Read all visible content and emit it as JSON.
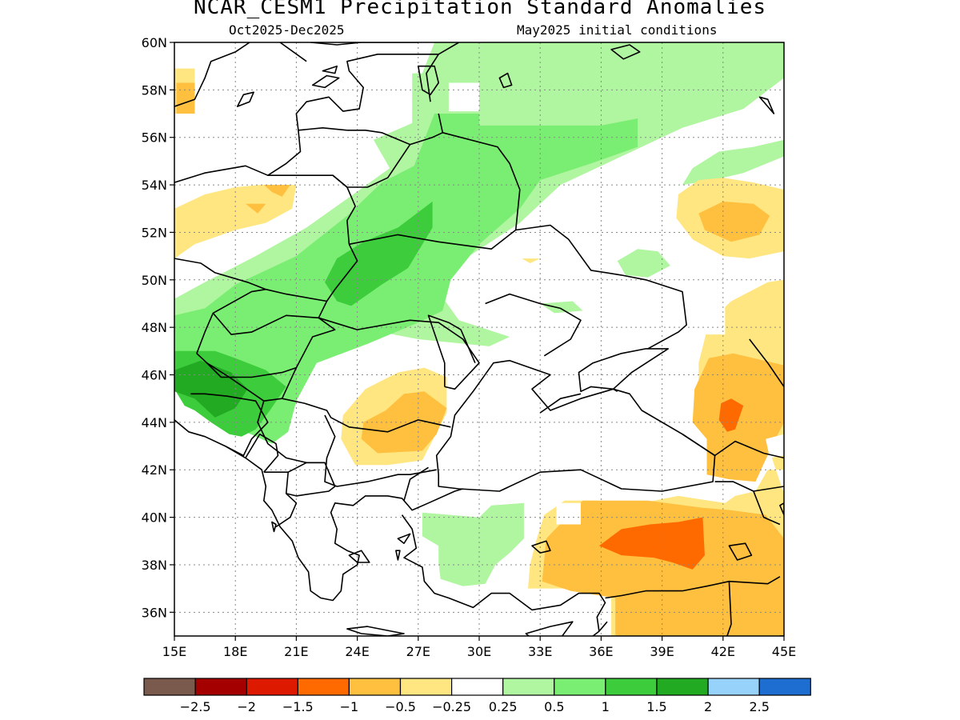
{
  "title": "NCAR_CESM1 Precipitation Standard Anomalies",
  "period": "Oct2025-Dec2025",
  "initial_conditions": "May2025 initial conditions",
  "map": {
    "lon_range": [
      15,
      45
    ],
    "lat_range": [
      35,
      60
    ],
    "lat_ticks": [
      "60N",
      "58N",
      "56N",
      "54N",
      "52N",
      "50N",
      "48N",
      "46N",
      "44N",
      "42N",
      "40N",
      "38N",
      "36N"
    ],
    "lat_tick_values": [
      60,
      58,
      56,
      54,
      52,
      50,
      48,
      46,
      44,
      42,
      40,
      38,
      36
    ],
    "lon_ticks": [
      "15E",
      "18E",
      "21E",
      "24E",
      "27E",
      "30E",
      "33E",
      "36E",
      "39E",
      "42E",
      "45E"
    ],
    "lon_tick_values": [
      15,
      18,
      21,
      24,
      27,
      30,
      33,
      36,
      39,
      42,
      45
    ],
    "grid": true
  },
  "colorbar": {
    "colors": [
      "#7b5a4e",
      "#a50000",
      "#dd1a00",
      "#ff6a00",
      "#ffbf3f",
      "#ffe680",
      "#ffffff",
      "#b0f5a0",
      "#7aee72",
      "#3ccc3c",
      "#22aa22",
      "#96d2fa",
      "#1e6ed2"
    ],
    "labels": [
      "-2.5",
      "-2",
      "-1.5",
      "-1",
      "-0.5",
      "-0.25",
      "0.25",
      "0.5",
      "1",
      "1.5",
      "2",
      "2.5"
    ]
  },
  "fills": {
    "wet_light": "#b0f5a0",
    "wet_mid": "#7aee72",
    "wet_strong": "#3ccc3c",
    "wet_heavy": "#22aa22",
    "dry_light": "#ffe680",
    "dry_mid": "#ffbf3f",
    "dry_strong": "#ff6a00"
  }
}
